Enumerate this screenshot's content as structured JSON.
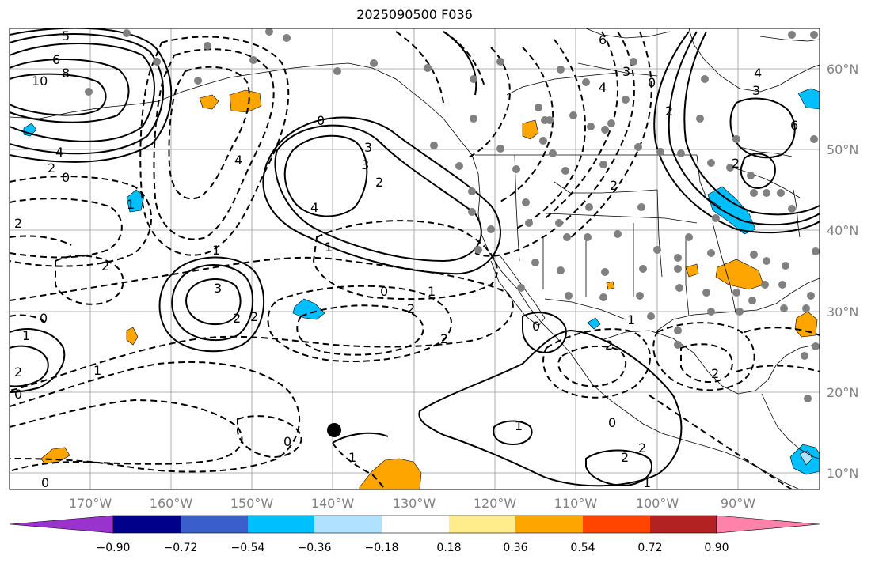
{
  "title": "2025090500 F036",
  "lat_labels": [
    "60°N",
    "50°N",
    "40°N",
    "30°N",
    "20°N",
    "10°N"
  ],
  "lon_labels": [
    "170°W",
    "160°W",
    "150°W",
    "140°W",
    "130°W",
    "120°W",
    "110°W",
    "100°W",
    "90°W"
  ],
  "colorbar": {
    "colors": [
      "#9a32cd",
      "#00008b",
      "#3a5fcd",
      "#00bfff",
      "#b0e2ff",
      "#ffffff",
      "#ffec8b",
      "#ffa500",
      "#ff4500",
      "#b22222",
      "#ff82ab"
    ],
    "tick_labels": [
      "−0.90",
      "−0.72",
      "−0.54",
      "−0.36",
      "−0.18",
      "0.18",
      "0.36",
      "0.54",
      "0.72",
      "0.90"
    ]
  },
  "contour_labels": [
    {
      "text": "6"
    },
    {
      "text": "8"
    },
    {
      "text": "10"
    },
    {
      "text": "5"
    },
    {
      "text": "4"
    },
    {
      "text": "2"
    },
    {
      "text": "0"
    },
    {
      "text": "2"
    },
    {
      "text": "1"
    },
    {
      "text": "4"
    },
    {
      "text": "2"
    },
    {
      "text": "1"
    },
    {
      "text": "4"
    },
    {
      "text": "3"
    },
    {
      "text": "0"
    },
    {
      "text": "2"
    },
    {
      "text": "3"
    },
    {
      "text": "1"
    },
    {
      "text": "0"
    },
    {
      "text": "2"
    },
    {
      "text": "2"
    },
    {
      "text": "1"
    },
    {
      "text": "3"
    },
    {
      "text": "2"
    },
    {
      "text": "0"
    },
    {
      "text": "0"
    },
    {
      "text": "1"
    },
    {
      "text": "2"
    },
    {
      "text": "1"
    },
    {
      "text": "2"
    },
    {
      "text": "0"
    },
    {
      "text": "0"
    },
    {
      "text": "1"
    },
    {
      "text": "0"
    },
    {
      "text": "1"
    },
    {
      "text": "2"
    },
    {
      "text": "1"
    },
    {
      "text": "2"
    },
    {
      "text": "0"
    },
    {
      "text": "2"
    },
    {
      "text": "2"
    },
    {
      "text": "1"
    },
    {
      "text": "6"
    },
    {
      "text": "4"
    },
    {
      "text": "3"
    },
    {
      "text": "0"
    },
    {
      "text": "4"
    },
    {
      "text": "3"
    },
    {
      "text": "6"
    },
    {
      "text": "2"
    },
    {
      "text": "2"
    },
    {
      "text": "2"
    }
  ]
}
